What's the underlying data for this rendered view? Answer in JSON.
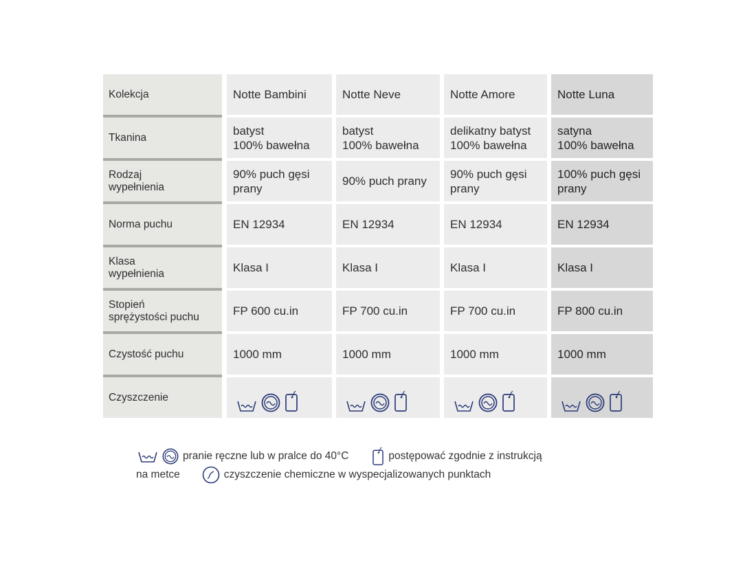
{
  "table": {
    "rows": [
      {
        "label": "Kolekcja",
        "cells": [
          "Notte Bambini",
          "Notte Neve",
          "Notte Amore",
          "Notte Luna"
        ]
      },
      {
        "label": "Tkanina",
        "cells": [
          "batyst\n100% bawełna",
          "batyst\n100% bawełna",
          "delikatny batyst\n100% bawełna",
          "satyna\n100% bawełna"
        ]
      },
      {
        "label": "Rodzaj\nwypełnienia",
        "cells": [
          "90% puch gęsi\nprany",
          "90% puch prany",
          "90% puch gęsi\nprany",
          "100% puch gęsi\nprany"
        ]
      },
      {
        "label": "Norma puchu",
        "cells": [
          "EN 12934",
          "EN 12934",
          "EN 12934",
          "EN 12934"
        ]
      },
      {
        "label": "Klasa\nwypełnienia",
        "cells": [
          "Klasa I",
          "Klasa I",
          "Klasa I",
          "Klasa I"
        ]
      },
      {
        "label": "Stopień\nsprężystości puchu",
        "cells": [
          "FP 600 cu.in",
          "FP 700 cu.in",
          "FP 700 cu.in",
          "FP 800 cu.in"
        ]
      },
      {
        "label": "Czystość puchu",
        "cells": [
          "1000 mm",
          "1000 mm",
          "1000 mm",
          "1000 mm"
        ]
      }
    ],
    "cleaning_label": "Czyszczenie",
    "cleaning_icons": [
      "hand-wash-tub-icon",
      "machine-wash-circle-icon",
      "care-label-tag-icon"
    ]
  },
  "legend": {
    "wash": "pranie ręczne lub w pralce do 40°C",
    "tag": "postępować zgodnie z instrukcją",
    "tag_cont": "na metce",
    "dry_clean": "czyszczenie chemiczne w wyspecjalizowanych punktach"
  },
  "colors": {
    "icon": "#2b3a78",
    "highlight_column": "#d7d7d7"
  }
}
